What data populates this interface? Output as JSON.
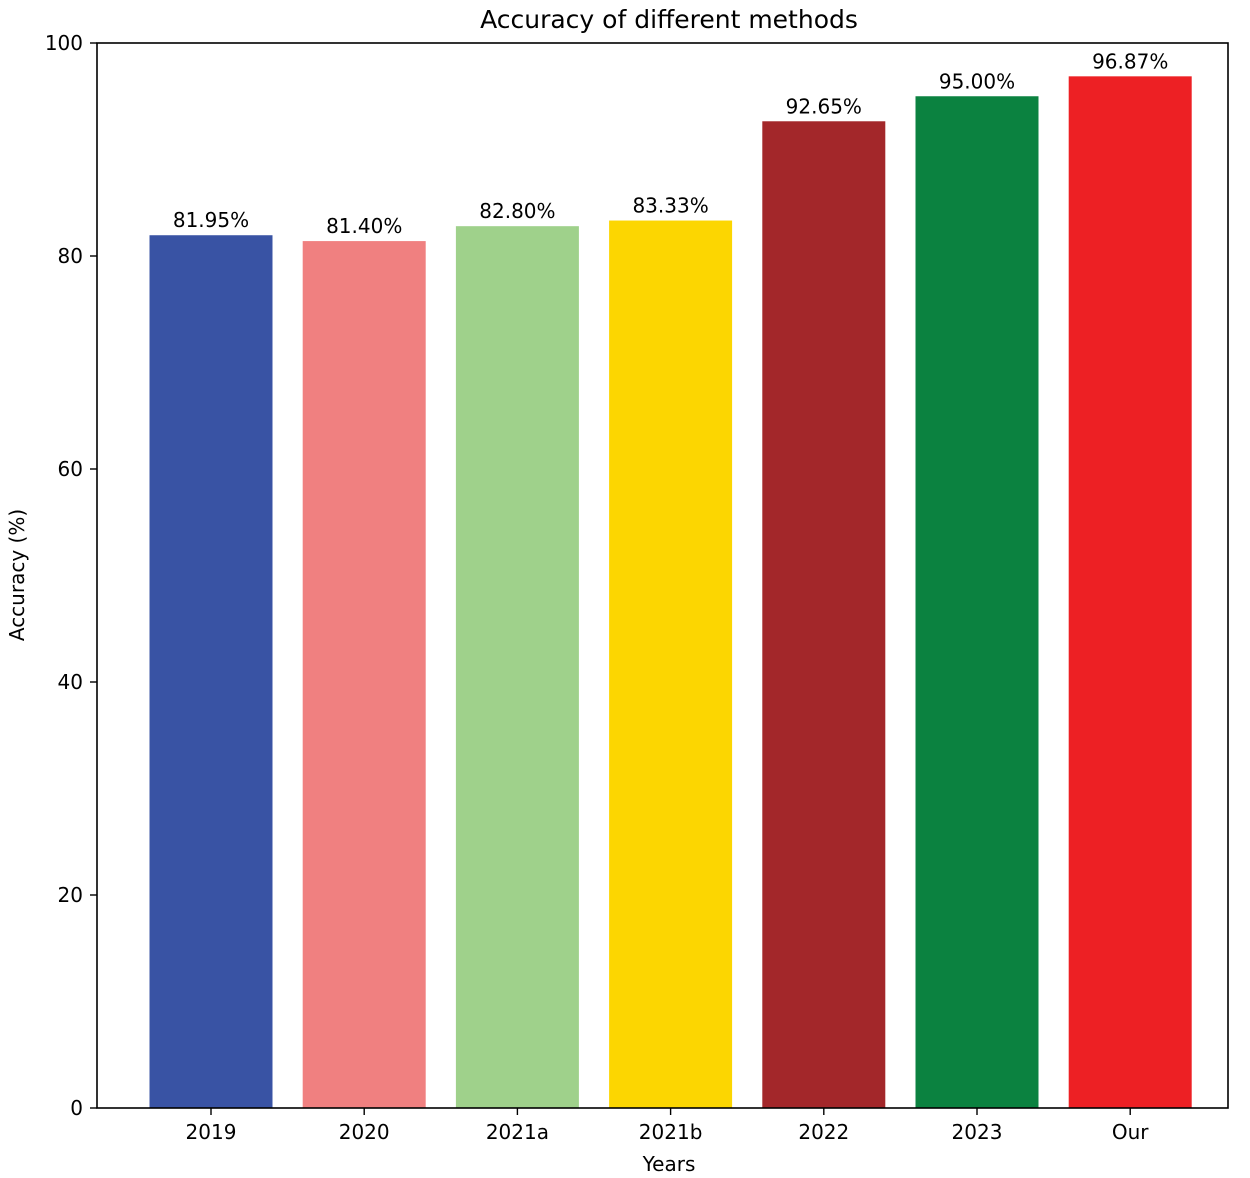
{
  "chart_data": {
    "type": "bar",
    "title": "Accuracy of different methods",
    "xlabel": "Years",
    "ylabel": "Accuracy (%)",
    "categories": [
      "2019",
      "2020",
      "2021a",
      "2021b",
      "2022",
      "2023",
      "Our"
    ],
    "values": [
      81.95,
      81.4,
      82.8,
      83.33,
      92.65,
      95.0,
      96.87
    ],
    "data_labels": [
      "81.95%",
      "81.40%",
      "82.80%",
      "83.33%",
      "92.65%",
      "95.00%",
      "96.87%"
    ],
    "colors": [
      "#3953a4",
      "#f08080",
      "#9fd18b",
      "#fcd601",
      "#a3272a",
      "#0b8240",
      "#ed2024"
    ],
    "ylim": [
      0,
      100
    ],
    "yticks": [
      0,
      20,
      40,
      60,
      80,
      100
    ],
    "grid": false,
    "legend": "none"
  }
}
